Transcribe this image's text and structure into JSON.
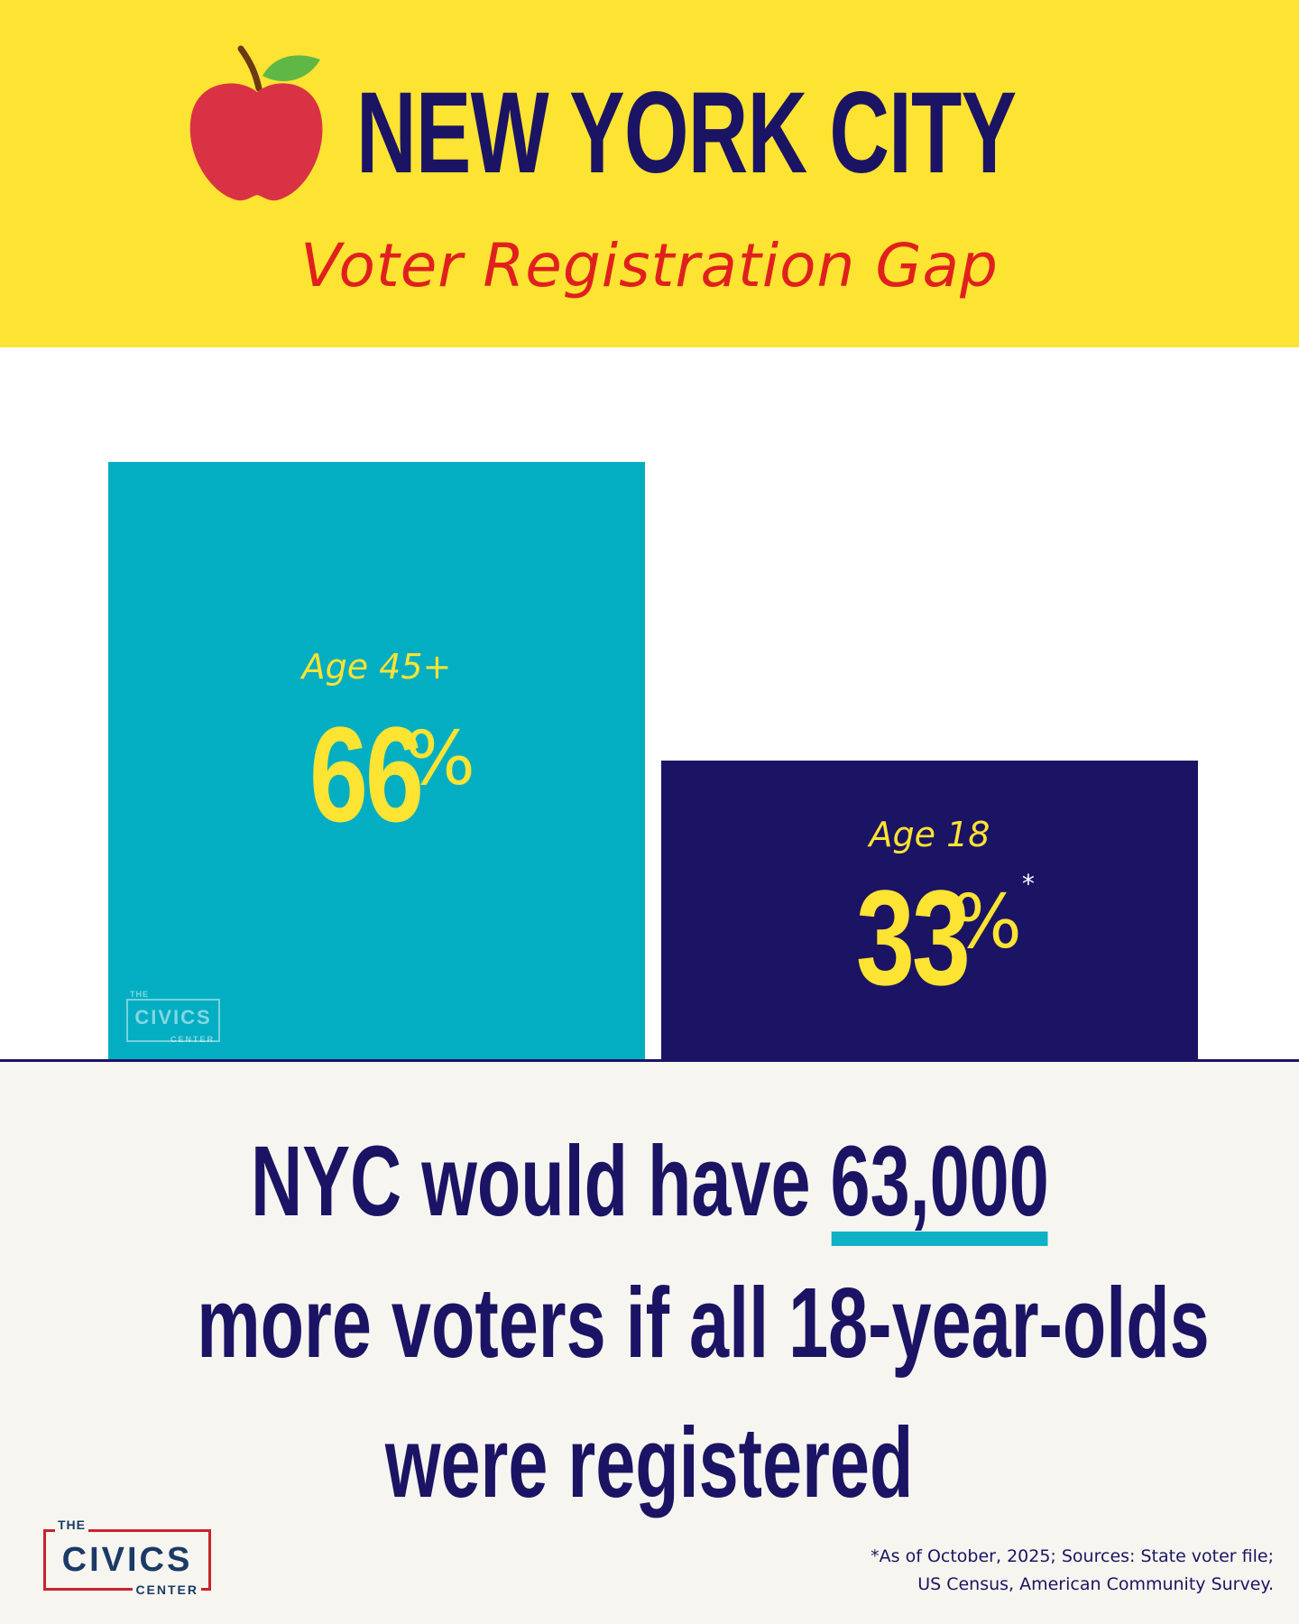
{
  "header": {
    "title": "NEW YORK CITY",
    "subtitle": "Voter Registration Gap",
    "icon": "apple-icon"
  },
  "chart_data": {
    "type": "bar",
    "categories": [
      "Age 45+",
      "Age 18"
    ],
    "values": [
      66,
      33
    ],
    "value_labels": [
      "66",
      "33"
    ],
    "unit": "%",
    "asterisk": "*",
    "colors": [
      "#04aec2",
      "#1b1464"
    ],
    "label_color": "#fde332",
    "ylim": [
      0,
      100
    ],
    "grid": false
  },
  "watermark": {
    "the": "THE",
    "civics": "CIVICS",
    "center": "CENTER"
  },
  "message": {
    "line1_prefix": "NYC would have ",
    "line1_highlight": "63,000",
    "line2": "more voters if all 18-year-olds",
    "line3": "were registered"
  },
  "logo": {
    "the": "THE",
    "civics": "CIVICS",
    "center": "CENTER"
  },
  "footnote": {
    "line1": "*As of October, 2025; Sources: State voter file;",
    "line2": "US Census, American Community Survey."
  },
  "colors": {
    "header_bg": "#fde332",
    "title": "#1b1464",
    "subtitle": "#e0201e",
    "bottom_bg": "#f7f5ef",
    "highlight": "#0fb1c4",
    "logo_border": "#c8232c"
  }
}
